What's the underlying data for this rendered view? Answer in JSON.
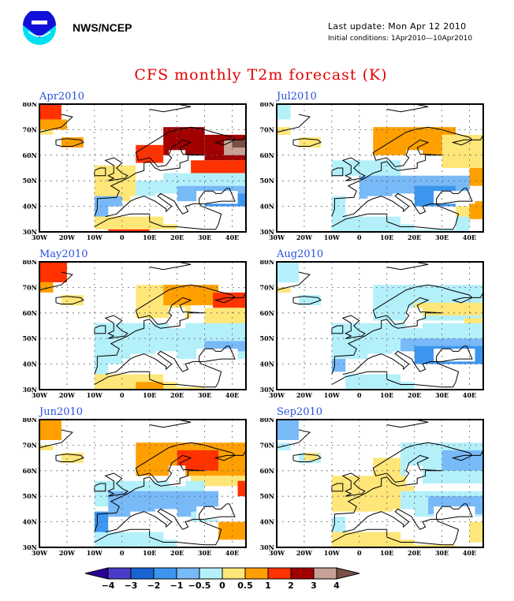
{
  "header": {
    "org": "NWS/NCEP",
    "last_update": "Last update: Mon Apr 12 2010",
    "initial_conditions": "Initial conditions: 1Apr2010—10Apr2010",
    "logo_icon": "noaa-logo-icon"
  },
  "title": "CFS monthly T2m forecast (K)",
  "chart_data": {
    "type": "heatmap",
    "title": "CFS monthly T2m forecast (K)",
    "variable": "2m temperature anomaly",
    "units": "K",
    "region": "Europe",
    "lon_range": [
      -30,
      45
    ],
    "lat_range": [
      30,
      80
    ],
    "x_ticks": [
      "30W",
      "20W",
      "10W",
      "0",
      "10E",
      "20E",
      "30E",
      "40E"
    ],
    "y_ticks": [
      "30N",
      "40N",
      "50N",
      "60N",
      "70N",
      "80N"
    ],
    "grid": true,
    "panels": [
      {
        "label": "Apr2010",
        "summary": "Strong warm anomaly (+2 to +4 K) over Scandinavia and NW Russia; cool anomaly (-0.5 to -2 K) over central/eastern Europe and Black Sea; weak warm over W Europe, Iberia and N Africa"
      },
      {
        "label": "Jul2010",
        "summary": "Warm (+0.5 to +1 K) over Scandinavia and W Russia; cool (-0.5 to -1 K) over central Europe, Balkans and Black Sea; slight warm over SE"
      },
      {
        "label": "May2010",
        "summary": "Warm (+1 to +2 K) over N Scandinavia and NW Russia; weak cool over central Europe; weak warm over N Africa"
      },
      {
        "label": "Aug2010",
        "summary": "Mostly weak cool (-0.5 K) over Europe, stronger cool (-1 to -2 K) over Black Sea region; weak warm over Russia"
      },
      {
        "label": "Jun2010",
        "summary": "Warm (+1 to +2 K) over Scandinavia and Russia; cool (-0.5 to -1 K) over W/central Europe and Iberia; warm over SE"
      },
      {
        "label": "Sep2010",
        "summary": "Weak warm (0 to +0.5 K) over W/central Europe and N Africa; weak to moderate cool over E Europe and Russia"
      }
    ],
    "legend": {
      "placement": "bottom",
      "levels": [
        "-4",
        "-3",
        "-2",
        "-1",
        "-0.5",
        "0",
        "0.5",
        "1",
        "2",
        "3",
        "4"
      ],
      "colors": [
        "#2a0098",
        "#4a3cc8",
        "#1a64d2",
        "#3c96f0",
        "#78b9f8",
        "#b4f0fa",
        "#ffe678",
        "#ffa000",
        "#ff3200",
        "#a00000",
        "#c8a096",
        "#7a5046"
      ]
    }
  }
}
